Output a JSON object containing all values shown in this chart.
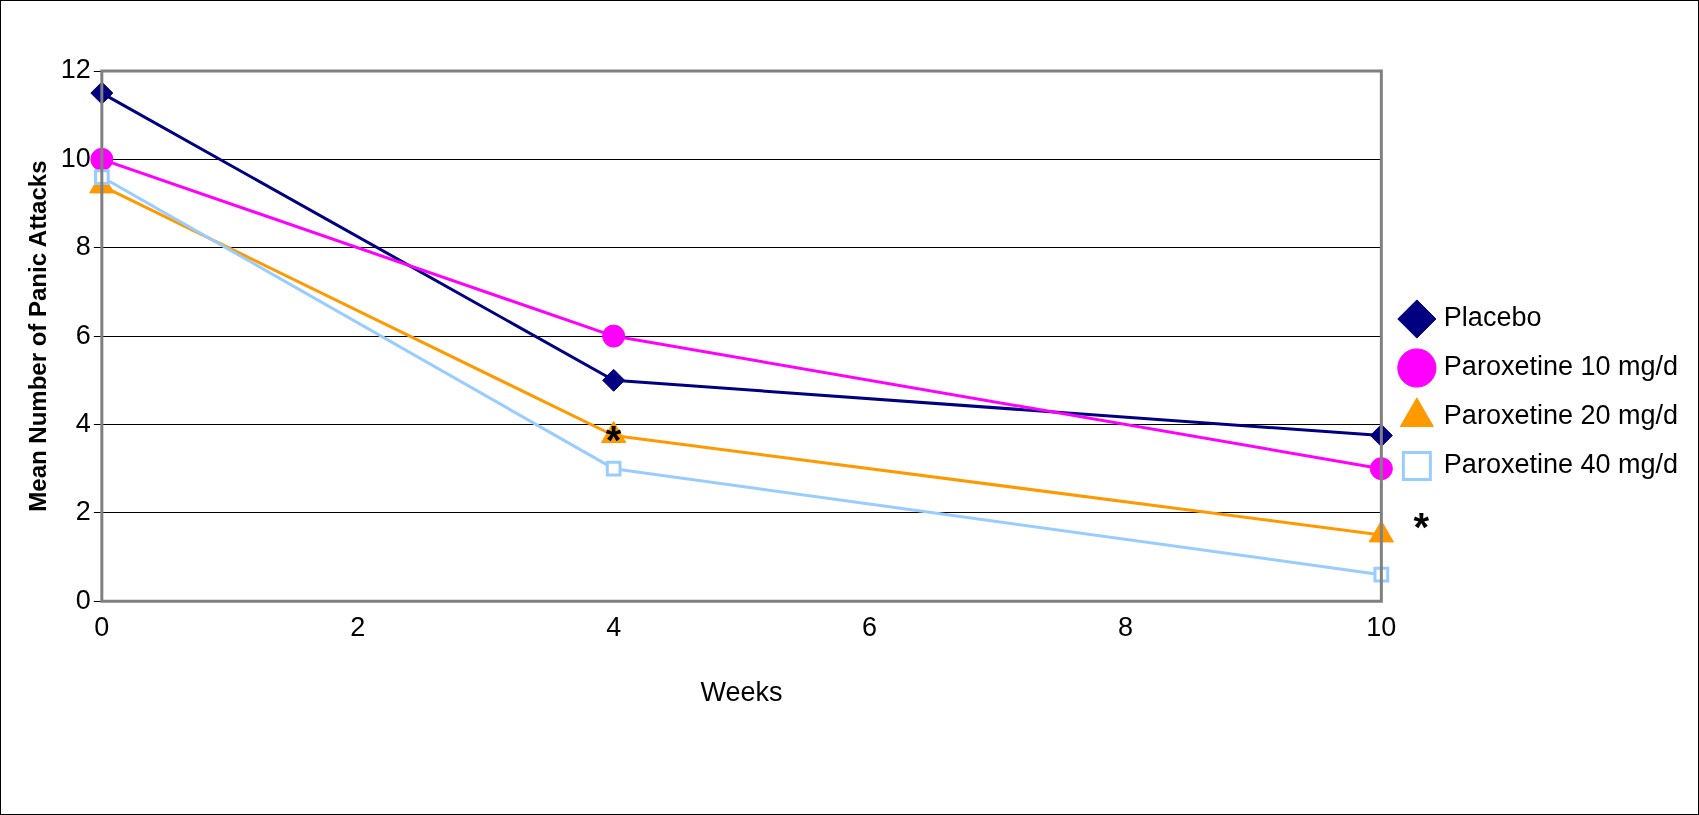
{
  "chart_data": {
    "type": "line",
    "xlabel": "Weeks",
    "ylabel": "Mean Number of Panic Attacks",
    "x": [
      0,
      4,
      10
    ],
    "series": [
      {
        "name": "Placebo",
        "color": "#000080",
        "marker": "diamond",
        "values": [
          11.5,
          5.0,
          3.75
        ]
      },
      {
        "name": "Paroxetine 10 mg/d",
        "color": "#ff00ff",
        "marker": "circle",
        "values": [
          10.0,
          6.0,
          3.0
        ]
      },
      {
        "name": "Paroxetine 20 mg/d",
        "color": "#ff9900",
        "marker": "triangle",
        "values": [
          9.4,
          3.75,
          1.5
        ]
      },
      {
        "name": "Paroxetine 40 mg/d",
        "color": "#99ccff",
        "marker": "square",
        "values": [
          9.6,
          3.0,
          0.6
        ]
      }
    ],
    "xlim": [
      0,
      10
    ],
    "xticks": [
      0,
      2,
      4,
      6,
      8,
      10
    ],
    "ylim": [
      0,
      12
    ],
    "yticks": [
      0,
      2,
      4,
      6,
      8,
      10,
      12
    ],
    "grid": "y",
    "legend": "right",
    "line_style": "solid",
    "annotations": [
      {
        "text": "*",
        "x": 4,
        "y": 3.8
      },
      {
        "text": "*",
        "x": 10,
        "y": 1.5
      }
    ]
  }
}
